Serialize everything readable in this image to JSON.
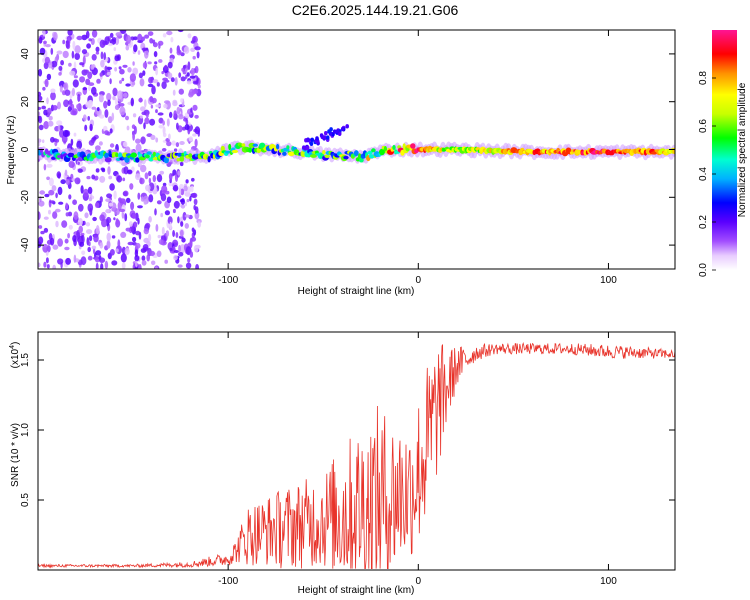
{
  "title": "C2E6.2025.144.19.21.G06",
  "chart_data": [
    {
      "type": "heatmap",
      "name": "spectrogram",
      "xlabel": "Height of straight line (km)",
      "ylabel": "Frequency (Hz)",
      "xlim": [
        -200,
        135
      ],
      "ylim": [
        -50,
        50
      ],
      "xticks": [
        -100,
        0,
        100
      ],
      "xtick_labels": [
        "-100",
        "0",
        "100"
      ],
      "yticks": [
        -40,
        -20,
        0,
        20,
        40
      ],
      "ytick_labels": [
        "-40",
        "-20",
        "0",
        "20",
        "40"
      ],
      "colorbar": {
        "label": "Normalized spectral amplitude",
        "range": [
          0,
          1
        ],
        "ticks": [
          0.0,
          0.2,
          0.4,
          0.6,
          0.8
        ],
        "tick_labels": [
          "0.0",
          "0.2",
          "0.4",
          "0.6",
          "0.8"
        ],
        "colors": [
          "#ffffff",
          "#d9b3ff",
          "#8a2be2",
          "#4b00ff",
          "#0000ff",
          "#00bfff",
          "#00ffcc",
          "#00ff00",
          "#c8ff00",
          "#ffff00",
          "#ff8c00",
          "#ff0000",
          "#ff1493"
        ]
      },
      "ridge": [
        {
          "x": -200,
          "f": -2,
          "amp": 0.3
        },
        {
          "x": -160,
          "f": -3,
          "amp": 0.4
        },
        {
          "x": -130,
          "f": -3,
          "amp": 0.45
        },
        {
          "x": -110,
          "f": -3,
          "amp": 0.5
        },
        {
          "x": -95,
          "f": 1,
          "amp": 0.55
        },
        {
          "x": -75,
          "f": 0,
          "amp": 0.5
        },
        {
          "x": -50,
          "f": -2,
          "amp": 0.45
        },
        {
          "x": -30,
          "f": -3,
          "amp": 0.55
        },
        {
          "x": -15,
          "f": 0,
          "amp": 0.65
        },
        {
          "x": 0,
          "f": 0,
          "amp": 0.85
        },
        {
          "x": 20,
          "f": 0,
          "amp": 0.6
        },
        {
          "x": 60,
          "f": -1,
          "amp": 0.8
        },
        {
          "x": 100,
          "f": -1,
          "amp": 0.9
        },
        {
          "x": 135,
          "f": -1,
          "amp": 0.75
        }
      ],
      "noise_region_x": [
        -200,
        -115
      ]
    },
    {
      "type": "line",
      "name": "snr",
      "xlabel": "Height of straight line (km)",
      "ylabel": "SNR (10 * v/v)",
      "y_scale_label": "(x10",
      "y_scale_exponent": "4",
      "y_scale_close": ")",
      "xlim": [
        -200,
        135
      ],
      "ylim": [
        0,
        1.7
      ],
      "xticks": [
        -100,
        0,
        100
      ],
      "xtick_labels": [
        "-100",
        "0",
        "100"
      ],
      "yticks": [
        0.5,
        1.0,
        1.5
      ],
      "ytick_labels": [
        "0.5",
        "1.0",
        "1.5"
      ],
      "color": "#e8332a",
      "series": [
        {
          "name": "SNR",
          "x": [
            -200,
            -150,
            -120,
            -100,
            -95,
            -90,
            -80,
            -70,
            -60,
            -50,
            -40,
            -30,
            -20,
            -15,
            -10,
            -5,
            0,
            5,
            10,
            15,
            20,
            30,
            40,
            60,
            80,
            100,
            120,
            135
          ],
          "base": [
            0.03,
            0.03,
            0.04,
            0.08,
            0.15,
            0.25,
            0.28,
            0.3,
            0.33,
            0.36,
            0.4,
            0.45,
            0.5,
            0.5,
            0.55,
            0.55,
            0.7,
            0.9,
            1.15,
            1.3,
            1.45,
            1.55,
            1.58,
            1.58,
            1.58,
            1.56,
            1.55,
            1.54
          ],
          "spread": [
            0.01,
            0.01,
            0.02,
            0.05,
            0.1,
            0.22,
            0.25,
            0.3,
            0.32,
            0.35,
            0.5,
            0.6,
            0.7,
            0.6,
            0.55,
            0.5,
            0.55,
            0.6,
            0.5,
            0.3,
            0.15,
            0.06,
            0.04,
            0.04,
            0.04,
            0.05,
            0.04,
            0.03
          ]
        }
      ]
    }
  ]
}
